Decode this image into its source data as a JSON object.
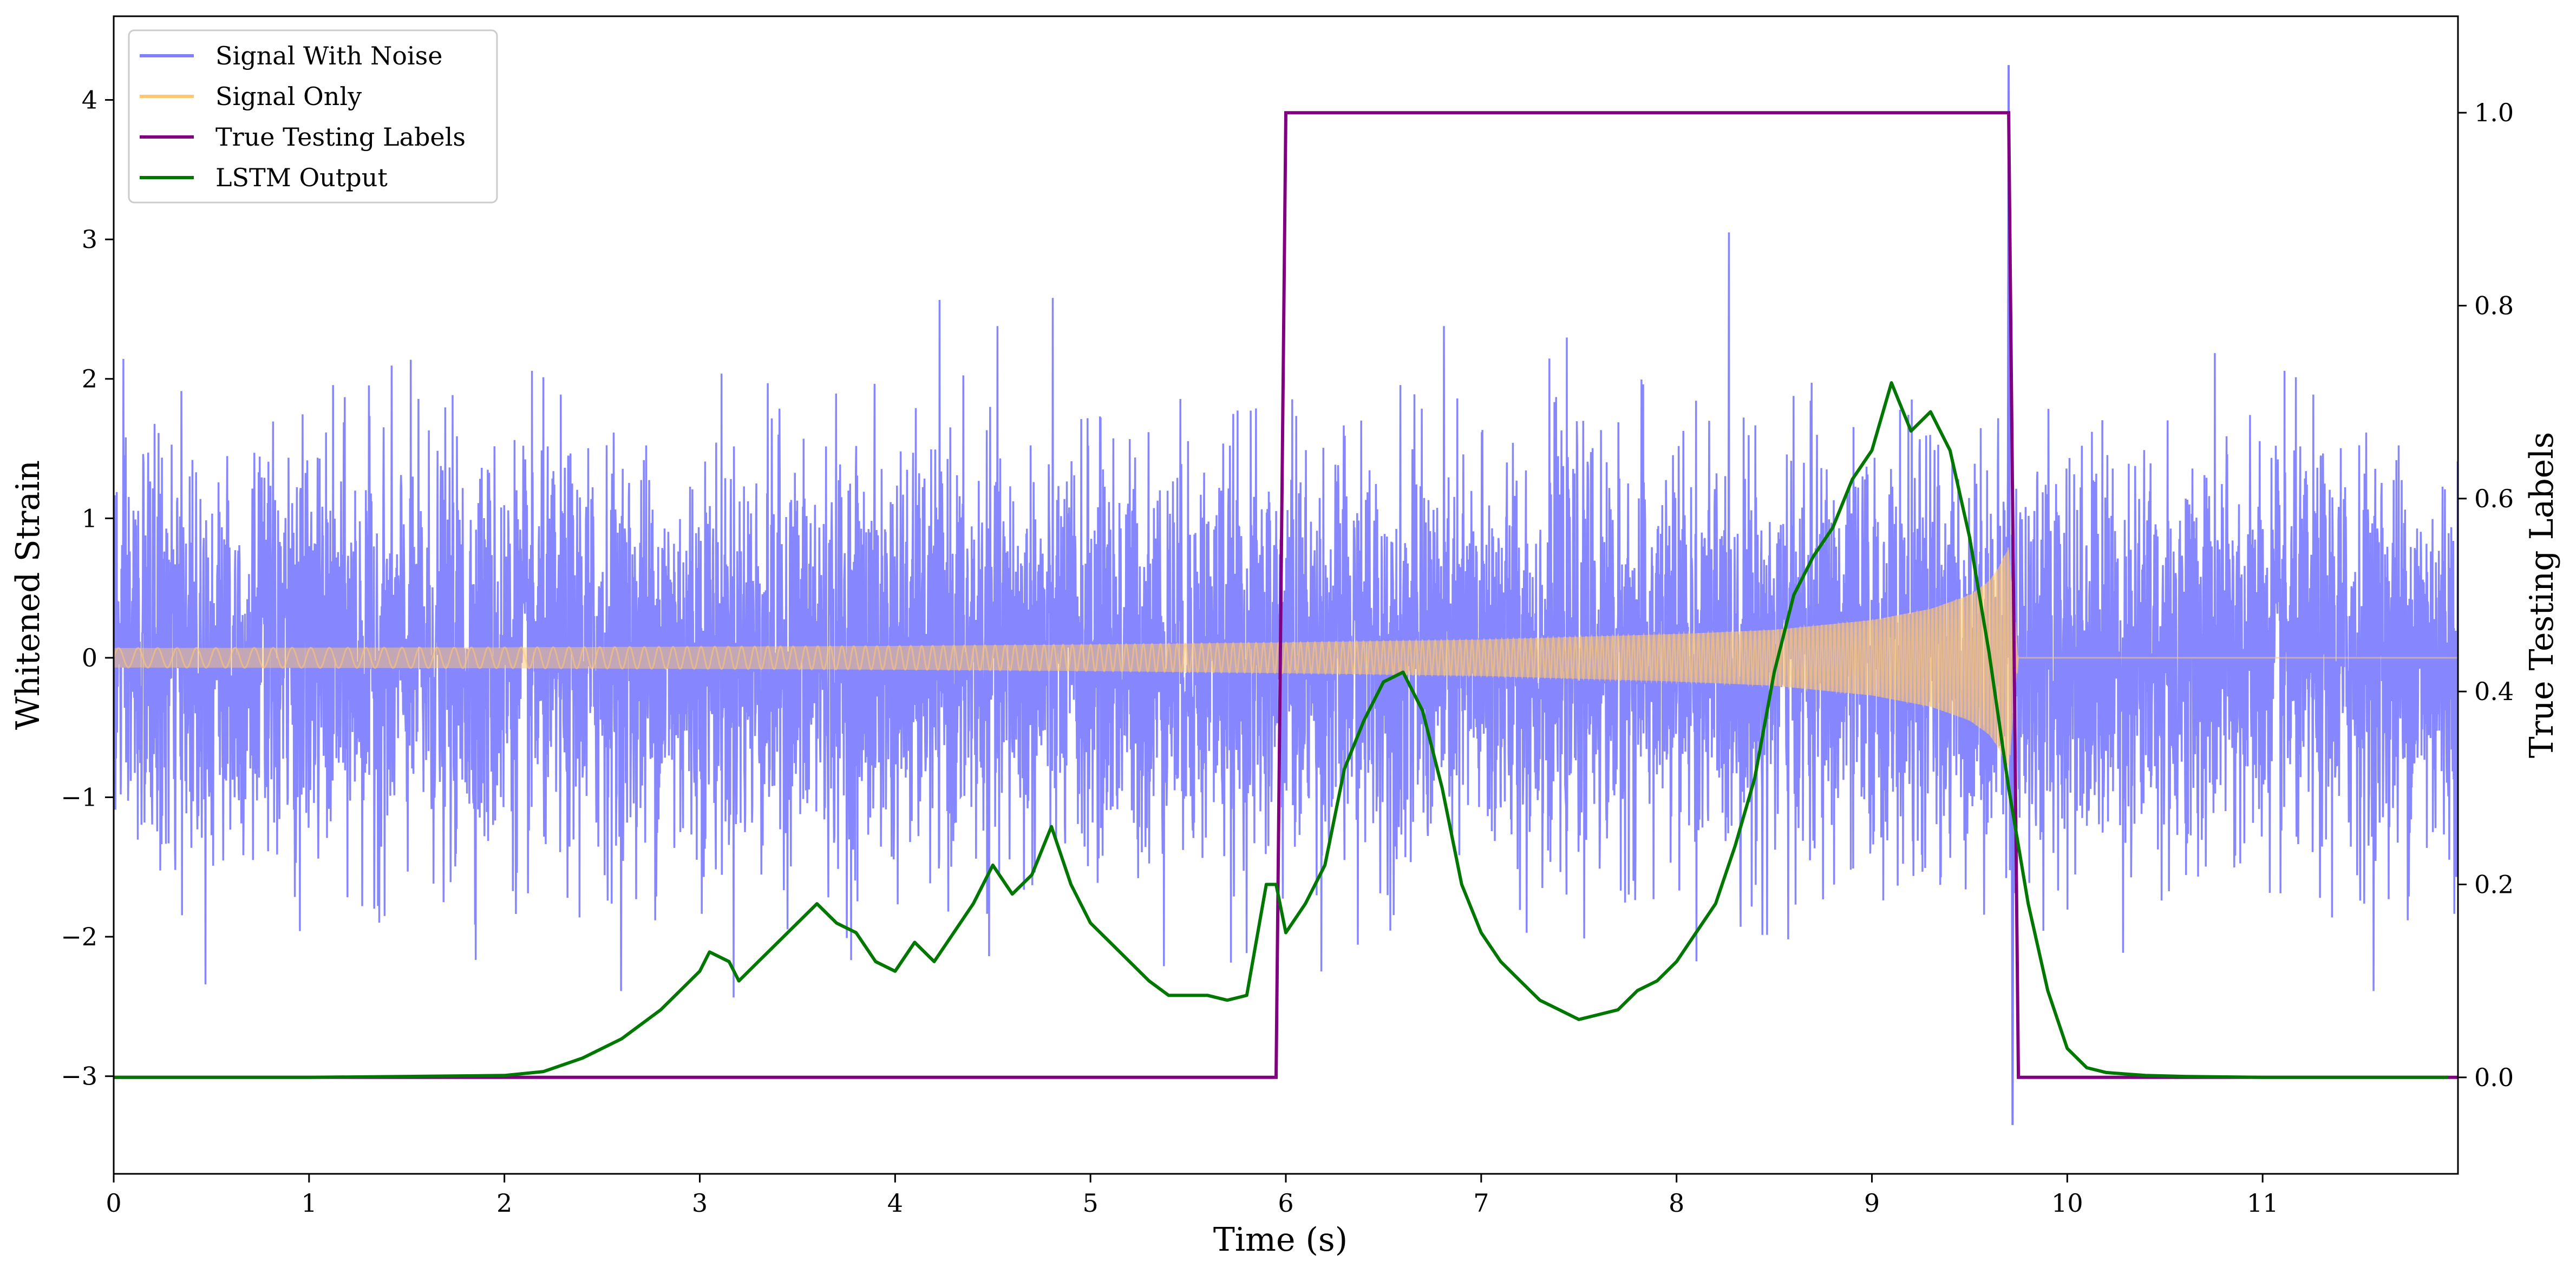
{
  "chart_data": {
    "type": "line",
    "title": "",
    "xlabel": "Time (s)",
    "ylabel": "Whitened Strain",
    "y2label": "True Testing Labels",
    "xlim": [
      0,
      12
    ],
    "ylim": [
      -3.7,
      4.6
    ],
    "y2lim": [
      -0.1,
      1.1
    ],
    "xticks": [
      0,
      1,
      2,
      3,
      4,
      5,
      6,
      7,
      8,
      9,
      10,
      11
    ],
    "xtick_labels": [
      "0",
      "1",
      "2",
      "3",
      "4",
      "5",
      "6",
      "7",
      "8",
      "9",
      "10",
      "11"
    ],
    "yticks": [
      -3,
      -2,
      -1,
      0,
      1,
      2,
      3,
      4
    ],
    "ytick_labels": [
      "−3",
      "−2",
      "−1",
      "0",
      "1",
      "2",
      "3",
      "4"
    ],
    "y2ticks": [
      0.0,
      0.2,
      0.4,
      0.6,
      0.8,
      1.0
    ],
    "y2tick_labels": [
      "0.0",
      "0.2",
      "0.4",
      "0.6",
      "0.8",
      "1.0"
    ],
    "grid": false,
    "legend_position": "top-left",
    "series": [
      {
        "name": "Signal With Noise",
        "axis": "left",
        "color": "#8080ff",
        "description_values": "noisy whitened strain, mostly between about -2 and 2 with spikes up to 4.25 and down to -3.35",
        "extremes": {
          "max": 4.25,
          "max_x": 9.7,
          "min": -3.35,
          "min_x": 9.72
        }
      },
      {
        "name": "Signal Only",
        "axis": "left",
        "color": "#ffc870",
        "envelope": {
          "t": [
            0,
            2,
            4,
            5,
            6,
            7,
            8,
            8.5,
            9,
            9.3,
            9.5,
            9.6,
            9.65,
            9.7,
            9.75
          ],
          "amplitude": [
            0.07,
            0.075,
            0.085,
            0.095,
            0.11,
            0.13,
            0.17,
            0.2,
            0.27,
            0.35,
            0.45,
            0.55,
            0.65,
            0.8,
            0.0
          ]
        }
      },
      {
        "name": "True Testing Labels",
        "axis": "right",
        "color": "#800080",
        "x": [
          0,
          5.95,
          6.0,
          9.7,
          9.75,
          12
        ],
        "y": [
          0,
          0,
          1,
          1,
          0,
          0
        ]
      },
      {
        "name": "LSTM Output",
        "axis": "right",
        "color": "#007700",
        "x": [
          0,
          1,
          1.5,
          2,
          2.2,
          2.4,
          2.6,
          2.8,
          2.9,
          3.0,
          3.05,
          3.15,
          3.2,
          3.3,
          3.4,
          3.5,
          3.6,
          3.7,
          3.8,
          3.9,
          4.0,
          4.1,
          4.2,
          4.3,
          4.4,
          4.5,
          4.6,
          4.7,
          4.8,
          4.9,
          5.0,
          5.1,
          5.2,
          5.3,
          5.4,
          5.5,
          5.6,
          5.7,
          5.8,
          5.9,
          5.95,
          6.0,
          6.1,
          6.2,
          6.3,
          6.4,
          6.5,
          6.6,
          6.7,
          6.8,
          6.9,
          7.0,
          7.1,
          7.2,
          7.3,
          7.4,
          7.5,
          7.6,
          7.7,
          7.8,
          7.9,
          8.0,
          8.1,
          8.2,
          8.3,
          8.4,
          8.5,
          8.6,
          8.7,
          8.8,
          8.9,
          9.0,
          9.1,
          9.2,
          9.3,
          9.4,
          9.5,
          9.6,
          9.7,
          9.8,
          9.9,
          10.0,
          10.1,
          10.2,
          10.4,
          10.6,
          11.0,
          11.5,
          11.95
        ],
        "y": [
          0,
          0,
          0.001,
          0.002,
          0.006,
          0.02,
          0.04,
          0.07,
          0.09,
          0.11,
          0.13,
          0.12,
          0.1,
          0.12,
          0.14,
          0.16,
          0.18,
          0.16,
          0.15,
          0.12,
          0.11,
          0.14,
          0.12,
          0.15,
          0.18,
          0.22,
          0.19,
          0.21,
          0.26,
          0.2,
          0.16,
          0.14,
          0.12,
          0.1,
          0.085,
          0.085,
          0.085,
          0.08,
          0.085,
          0.2,
          0.2,
          0.15,
          0.18,
          0.22,
          0.32,
          0.37,
          0.41,
          0.42,
          0.38,
          0.3,
          0.2,
          0.15,
          0.12,
          0.1,
          0.08,
          0.07,
          0.06,
          0.065,
          0.07,
          0.09,
          0.1,
          0.12,
          0.15,
          0.18,
          0.24,
          0.31,
          0.42,
          0.5,
          0.54,
          0.57,
          0.62,
          0.65,
          0.72,
          0.67,
          0.69,
          0.65,
          0.56,
          0.44,
          0.3,
          0.18,
          0.09,
          0.03,
          0.01,
          0.005,
          0.002,
          0.001,
          0.0,
          0.0,
          0.0
        ]
      }
    ]
  }
}
